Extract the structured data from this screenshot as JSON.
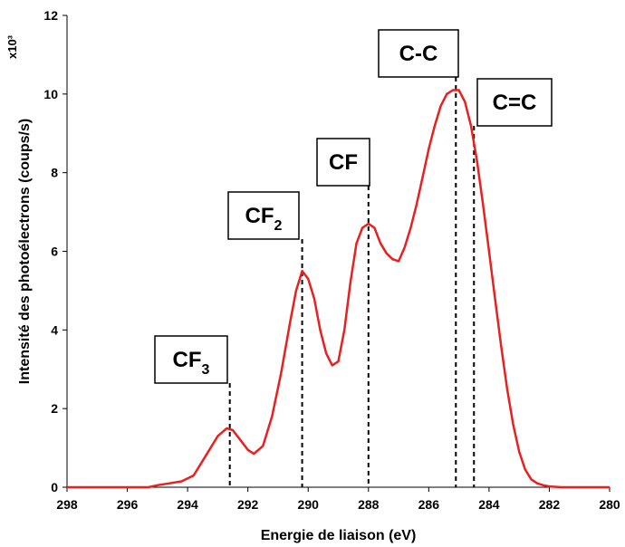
{
  "chart_data": {
    "type": "line",
    "xlabel": "Energie de liaison (eV)",
    "ylabel": "Intensité des photoélectrons (coups/s)",
    "y_multiplier": "x10³",
    "xlim": [
      298,
      280
    ],
    "x_reversed": true,
    "ylim": [
      0,
      12
    ],
    "x_ticks": [
      298,
      296,
      294,
      292,
      290,
      288,
      286,
      284,
      282,
      280
    ],
    "y_ticks": [
      0,
      2,
      4,
      6,
      8,
      10,
      12
    ],
    "grid": false,
    "series": [
      {
        "color": "#e8201f",
        "x": [
          298,
          295.3,
          295.0,
          294.6,
          294.2,
          293.8,
          293.4,
          293.0,
          292.7,
          292.5,
          292.3,
          292.0,
          291.8,
          291.5,
          291.2,
          290.9,
          290.6,
          290.4,
          290.2,
          290.0,
          289.8,
          289.6,
          289.4,
          289.2,
          289.0,
          288.8,
          288.6,
          288.4,
          288.2,
          288.0,
          287.8,
          287.6,
          287.4,
          287.2,
          287.0,
          286.8,
          286.6,
          286.4,
          286.2,
          286.0,
          285.8,
          285.6,
          285.4,
          285.2,
          285.0,
          284.8,
          284.6,
          284.4,
          284.2,
          284.0,
          283.8,
          283.6,
          283.4,
          283.2,
          283.0,
          282.8,
          282.6,
          282.4,
          282.2,
          282.0,
          281.6,
          281.0,
          280
        ],
        "y": [
          0,
          0,
          0.05,
          0.1,
          0.15,
          0.3,
          0.8,
          1.3,
          1.5,
          1.45,
          1.25,
          0.95,
          0.85,
          1.05,
          1.8,
          2.9,
          4.2,
          5.0,
          5.5,
          5.3,
          4.8,
          4.0,
          3.4,
          3.1,
          3.2,
          4.0,
          5.2,
          6.2,
          6.6,
          6.7,
          6.6,
          6.2,
          5.95,
          5.8,
          5.75,
          6.1,
          6.6,
          7.2,
          7.9,
          8.6,
          9.2,
          9.7,
          10.0,
          10.1,
          10.1,
          9.8,
          9.2,
          8.3,
          7.2,
          6.0,
          4.8,
          3.6,
          2.5,
          1.6,
          0.9,
          0.45,
          0.2,
          0.1,
          0.05,
          0.02,
          0,
          0,
          0
        ]
      }
    ],
    "annotations": [
      {
        "id": "cf3",
        "label": "CF",
        "sub": "3",
        "x": 292.6
      },
      {
        "id": "cf2",
        "label": "CF",
        "sub": "2",
        "x": 290.2
      },
      {
        "id": "cf",
        "label": "CF",
        "sub": "",
        "x": 288.0
      },
      {
        "id": "cc",
        "label": "C-C",
        "sub": "",
        "x": 285.1
      },
      {
        "id": "ceqc",
        "label": "C=C",
        "sub": "",
        "x": 284.5
      }
    ]
  }
}
